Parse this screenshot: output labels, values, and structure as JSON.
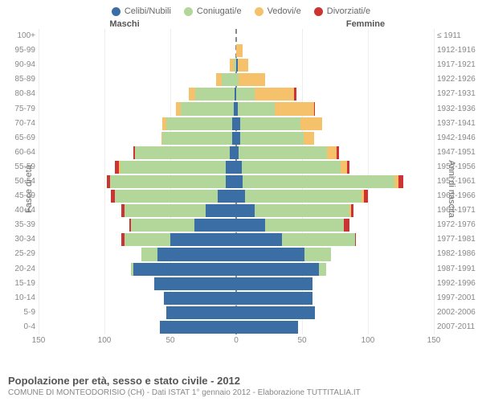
{
  "legend": [
    {
      "label": "Celibi/Nubili",
      "color": "#3a6ea5"
    },
    {
      "label": "Coniugati/e",
      "color": "#b3d69b"
    },
    {
      "label": "Vedovi/e",
      "color": "#f5c26b"
    },
    {
      "label": "Divorziati/e",
      "color": "#cc3333"
    }
  ],
  "header_male": "Maschi",
  "header_female": "Femmine",
  "y_label_left": "Fasce di età",
  "y_label_right": "Anni di nascita",
  "footer_title": "Popolazione per età, sesso e stato civile - 2012",
  "footer_sub": "COMUNE DI MONTEODORISIO (CH) - Dati ISTAT 1° gennaio 2012 - Elaborazione TUTTITALIA.IT",
  "x_ticks": [
    150,
    100,
    50,
    0,
    50,
    100,
    150
  ],
  "x_max": 150,
  "colors": {
    "single": "#3a6ea5",
    "married": "#b3d69b",
    "widowed": "#f5c26b",
    "divorced": "#cc3333",
    "grid": "#eeeeee",
    "center": "#888888",
    "bg": "#ffffff"
  },
  "rows": [
    {
      "age": "100+",
      "birth": "≤ 1911",
      "m": [
        0,
        0,
        0,
        0
      ],
      "f": [
        0,
        0,
        0,
        0
      ]
    },
    {
      "age": "95-99",
      "birth": "1912-1916",
      "m": [
        0,
        0,
        0,
        0
      ],
      "f": [
        0,
        0,
        5,
        0
      ]
    },
    {
      "age": "90-94",
      "birth": "1917-1921",
      "m": [
        0,
        2,
        3,
        0
      ],
      "f": [
        1,
        0,
        8,
        0
      ]
    },
    {
      "age": "85-89",
      "birth": "1922-1926",
      "m": [
        0,
        11,
        4,
        0
      ],
      "f": [
        0,
        2,
        20,
        0
      ]
    },
    {
      "age": "80-84",
      "birth": "1927-1931",
      "m": [
        1,
        30,
        5,
        0
      ],
      "f": [
        0,
        14,
        30,
        2
      ]
    },
    {
      "age": "75-79",
      "birth": "1932-1936",
      "m": [
        2,
        40,
        4,
        0
      ],
      "f": [
        1,
        28,
        30,
        1
      ]
    },
    {
      "age": "70-74",
      "birth": "1937-1941",
      "m": [
        3,
        50,
        3,
        0
      ],
      "f": [
        3,
        46,
        16,
        0
      ]
    },
    {
      "age": "65-69",
      "birth": "1942-1946",
      "m": [
        3,
        53,
        1,
        0
      ],
      "f": [
        3,
        48,
        8,
        0
      ]
    },
    {
      "age": "60-64",
      "birth": "1947-1951",
      "m": [
        5,
        72,
        0,
        1
      ],
      "f": [
        2,
        67,
        7,
        2
      ]
    },
    {
      "age": "55-59",
      "birth": "1952-1956",
      "m": [
        8,
        80,
        1,
        3
      ],
      "f": [
        4,
        75,
        5,
        2
      ]
    },
    {
      "age": "50-54",
      "birth": "1957-1961",
      "m": [
        8,
        88,
        0,
        2
      ],
      "f": [
        5,
        115,
        3,
        4
      ]
    },
    {
      "age": "45-49",
      "birth": "1962-1966",
      "m": [
        14,
        78,
        0,
        3
      ],
      "f": [
        7,
        88,
        2,
        3
      ]
    },
    {
      "age": "40-44",
      "birth": "1967-1971",
      "m": [
        23,
        62,
        0,
        2
      ],
      "f": [
        14,
        72,
        1,
        2
      ]
    },
    {
      "age": "35-39",
      "birth": "1972-1976",
      "m": [
        32,
        48,
        0,
        1
      ],
      "f": [
        22,
        60,
        0,
        4
      ]
    },
    {
      "age": "30-34",
      "birth": "1977-1981",
      "m": [
        50,
        35,
        0,
        2
      ],
      "f": [
        35,
        55,
        0,
        1
      ]
    },
    {
      "age": "25-29",
      "birth": "1982-1986",
      "m": [
        60,
        12,
        0,
        0
      ],
      "f": [
        52,
        20,
        0,
        0
      ]
    },
    {
      "age": "20-24",
      "birth": "1987-1991",
      "m": [
        78,
        2,
        0,
        0
      ],
      "f": [
        63,
        5,
        0,
        0
      ]
    },
    {
      "age": "15-19",
      "birth": "1992-1996",
      "m": [
        62,
        0,
        0,
        0
      ],
      "f": [
        58,
        0,
        0,
        0
      ]
    },
    {
      "age": "10-14",
      "birth": "1997-2001",
      "m": [
        55,
        0,
        0,
        0
      ],
      "f": [
        58,
        0,
        0,
        0
      ]
    },
    {
      "age": "5-9",
      "birth": "2002-2006",
      "m": [
        53,
        0,
        0,
        0
      ],
      "f": [
        60,
        0,
        0,
        0
      ]
    },
    {
      "age": "0-4",
      "birth": "2007-2011",
      "m": [
        58,
        0,
        0,
        0
      ],
      "f": [
        47,
        0,
        0,
        0
      ]
    }
  ]
}
